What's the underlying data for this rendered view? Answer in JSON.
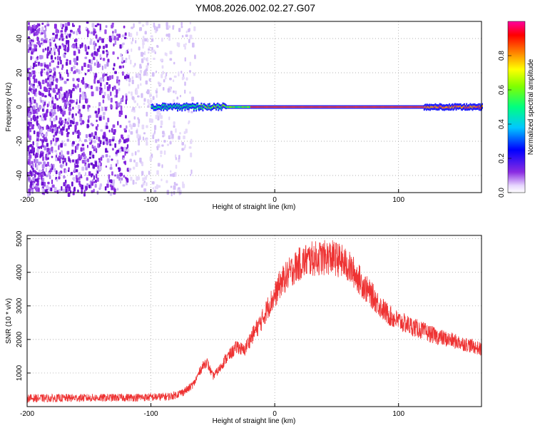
{
  "title": "YM08.2026.002.02.27.G07",
  "chart_data": [
    {
      "type": "heatmap",
      "xlabel": "Height of straight line (km)",
      "ylabel": "Frequency (Hz)",
      "xlim": [
        -200,
        167
      ],
      "ylim": [
        -50,
        50
      ],
      "xticks": [
        -200,
        -100,
        0,
        100
      ],
      "yticks": [
        -40,
        -20,
        0,
        20,
        40
      ],
      "grid": true,
      "colorbar": {
        "label": "Normalized spectral amplitude",
        "range": [
          0,
          1
        ],
        "ticks": [
          "0.0",
          "0.2",
          "0.4",
          "0.6",
          "0.8"
        ]
      },
      "features": {
        "noise_region_x": [
          -200,
          -65
        ],
        "carrier_line_x": [
          -100,
          167
        ],
        "carrier_frequency_hz": 0
      }
    },
    {
      "type": "line",
      "xlabel": "Height of straight line (km)",
      "ylabel": "SNR (10 * v/v)",
      "xlim": [
        -200,
        167
      ],
      "ylim": [
        0,
        5100
      ],
      "xticks": [
        -200,
        -100,
        0,
        100
      ],
      "yticks": [
        1000,
        2000,
        3000,
        4000,
        5000
      ],
      "grid": true,
      "series": [
        {
          "color": "#ee3333",
          "x": [
            -200,
            -180,
            -160,
            -140,
            -120,
            -100,
            -85,
            -80,
            -75,
            -70,
            -65,
            -60,
            -55,
            -50,
            -45,
            -40,
            -35,
            -30,
            -25,
            -20,
            -15,
            -10,
            -5,
            0,
            5,
            10,
            15,
            20,
            25,
            30,
            35,
            40,
            45,
            50,
            55,
            60,
            65,
            70,
            75,
            80,
            85,
            90,
            95,
            100,
            110,
            120,
            130,
            140,
            150,
            160,
            167
          ],
          "y": [
            250,
            250,
            260,
            260,
            270,
            280,
            300,
            350,
            420,
            520,
            700,
            1100,
            1350,
            900,
            1100,
            1400,
            1600,
            1800,
            1650,
            2000,
            2300,
            2600,
            3000,
            3300,
            3700,
            3900,
            4100,
            4250,
            4350,
            4400,
            4420,
            4430,
            4450,
            4400,
            4300,
            4150,
            3950,
            3700,
            3450,
            3250,
            3000,
            2800,
            2650,
            2550,
            2400,
            2250,
            2100,
            2000,
            1900,
            1800,
            1700
          ]
        }
      ]
    }
  ]
}
